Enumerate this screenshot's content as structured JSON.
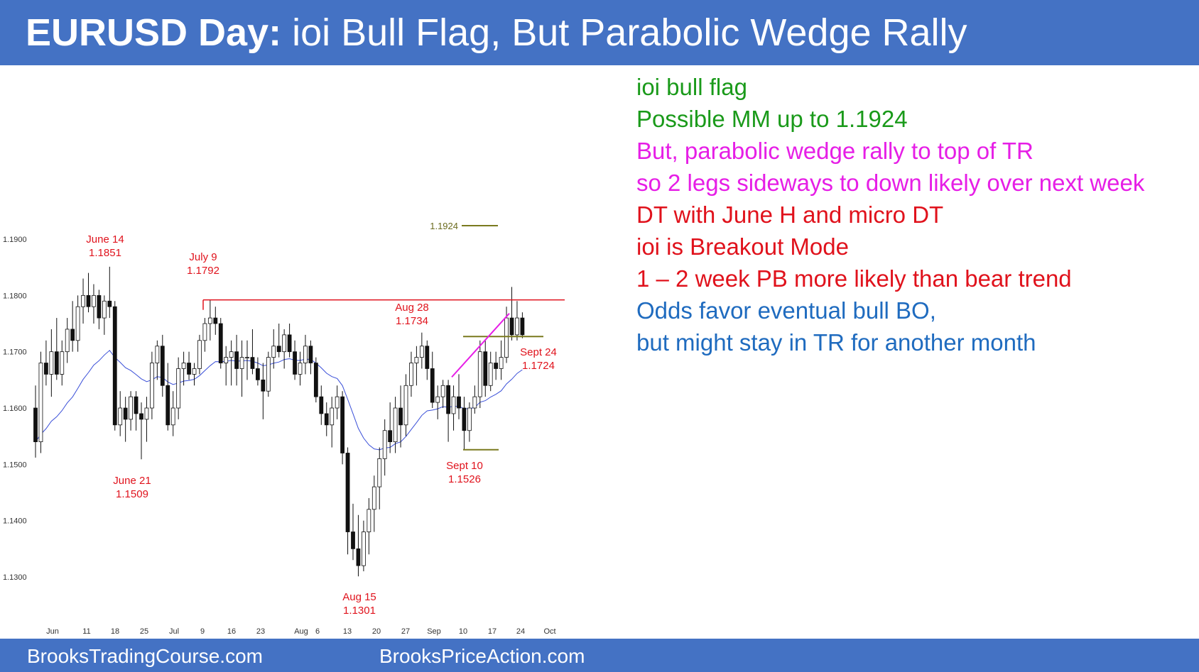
{
  "header": {
    "title_bold": "EURUSD Day:",
    "title_rest": " ioi Bull Flag, But Parabolic Wedge Rally"
  },
  "footer": {
    "left_link": "BrooksTradingCourse.com",
    "right_link": "BrooksPriceAction.com"
  },
  "notes": [
    {
      "text": "ioi bull flag",
      "color": "#1a9a1a"
    },
    {
      "text": "Possible MM up to 1.1924",
      "color": "#1a9a1a"
    },
    {
      "text": "But, parabolic wedge rally to top of TR",
      "color": "#e61ee6"
    },
    {
      "text": "so 2 legs sideways to down likely over next week",
      "color": "#e61ee6"
    },
    {
      "text": "DT with June H and micro DT",
      "color": "#e0121c"
    },
    {
      "text": "ioi is Breakout Mode",
      "color": "#e0121c"
    },
    {
      "text": "1 – 2 week PB more likely than bear trend",
      "color": "#e0121c"
    },
    {
      "text": "Odds favor eventual bull BO,",
      "color": "#1f6bbf"
    },
    {
      "text": "but might stay in TR for another month",
      "color": "#1f6bbf"
    }
  ],
  "chart_data": {
    "type": "candlestick",
    "y_axis_ticks": [
      "1.1900",
      "1.1800",
      "1.1700",
      "1.1600",
      "1.1500",
      "1.1400",
      "1.1300"
    ],
    "ylim": [
      1.127,
      1.1925
    ],
    "x_axis_ticks": [
      "Jun",
      "11",
      "18",
      "25",
      "Jul",
      "9",
      "16",
      "23",
      "Aug",
      "6",
      "13",
      "20",
      "27",
      "Sep",
      "10",
      "17",
      "24",
      "Oct"
    ],
    "annotations": [
      {
        "date": "June 14",
        "price": "1.1851"
      },
      {
        "date": "July 9",
        "price": "1.1792"
      },
      {
        "date": "Aug 28",
        "price": "1.1734"
      },
      {
        "date": "June 21",
        "price": "1.1509"
      },
      {
        "date": "Aug 15",
        "price": "1.1301"
      },
      {
        "date": "Sept 10",
        "price": "1.1526"
      },
      {
        "date": "Sept 24",
        "price": "1.1724"
      }
    ],
    "measured_move_target": "1.1924",
    "resistance_line": 1.1792,
    "flag_top": 1.1727,
    "flag_bottom": 1.1526,
    "candles": [
      [
        1.16,
        1.164,
        1.1512,
        1.154
      ],
      [
        1.154,
        1.17,
        1.152,
        1.168
      ],
      [
        1.168,
        1.172,
        1.164,
        1.166
      ],
      [
        1.166,
        1.174,
        1.162,
        1.17
      ],
      [
        1.17,
        1.176,
        1.165,
        1.166
      ],
      [
        1.166,
        1.172,
        1.164,
        1.17
      ],
      [
        1.17,
        1.176,
        1.168,
        1.174
      ],
      [
        1.174,
        1.179,
        1.17,
        1.172
      ],
      [
        1.172,
        1.18,
        1.17,
        1.178
      ],
      [
        1.178,
        1.183,
        1.175,
        1.18
      ],
      [
        1.18,
        1.184,
        1.177,
        1.178
      ],
      [
        1.178,
        1.182,
        1.175,
        1.18
      ],
      [
        1.18,
        1.181,
        1.174,
        1.176
      ],
      [
        1.176,
        1.18,
        1.173,
        1.179
      ],
      [
        1.179,
        1.1851,
        1.176,
        1.178
      ],
      [
        1.178,
        1.179,
        1.156,
        1.157
      ],
      [
        1.157,
        1.163,
        1.155,
        1.16
      ],
      [
        1.16,
        1.162,
        1.154,
        1.158
      ],
      [
        1.158,
        1.163,
        1.156,
        1.162
      ],
      [
        1.162,
        1.163,
        1.156,
        1.159
      ],
      [
        1.159,
        1.161,
        1.1509,
        1.158
      ],
      [
        1.158,
        1.162,
        1.154,
        1.16
      ],
      [
        1.16,
        1.17,
        1.158,
        1.168
      ],
      [
        1.168,
        1.172,
        1.165,
        1.171
      ],
      [
        1.171,
        1.173,
        1.162,
        1.164
      ],
      [
        1.164,
        1.168,
        1.156,
        1.157
      ],
      [
        1.157,
        1.163,
        1.155,
        1.16
      ],
      [
        1.16,
        1.169,
        1.158,
        1.167
      ],
      [
        1.167,
        1.17,
        1.164,
        1.168
      ],
      [
        1.168,
        1.17,
        1.165,
        1.166
      ],
      [
        1.166,
        1.168,
        1.164,
        1.167
      ],
      [
        1.167,
        1.173,
        1.166,
        1.172
      ],
      [
        1.172,
        1.176,
        1.17,
        1.175
      ],
      [
        1.175,
        1.1792,
        1.172,
        1.176
      ],
      [
        1.176,
        1.178,
        1.173,
        1.175
      ],
      [
        1.175,
        1.176,
        1.167,
        1.168
      ],
      [
        1.168,
        1.171,
        1.164,
        1.169
      ],
      [
        1.169,
        1.172,
        1.164,
        1.17
      ],
      [
        1.17,
        1.173,
        1.164,
        1.167
      ],
      [
        1.167,
        1.172,
        1.162,
        1.169
      ],
      [
        1.169,
        1.172,
        1.165,
        1.169
      ],
      [
        1.169,
        1.174,
        1.166,
        1.167
      ],
      [
        1.167,
        1.169,
        1.164,
        1.165
      ],
      [
        1.165,
        1.168,
        1.158,
        1.163
      ],
      [
        1.163,
        1.17,
        1.162,
        1.169
      ],
      [
        1.169,
        1.174,
        1.167,
        1.171
      ],
      [
        1.171,
        1.175,
        1.169,
        1.17
      ],
      [
        1.17,
        1.174,
        1.167,
        1.173
      ],
      [
        1.173,
        1.175,
        1.169,
        1.17
      ],
      [
        1.17,
        1.172,
        1.165,
        1.166
      ],
      [
        1.166,
        1.17,
        1.164,
        1.168
      ],
      [
        1.168,
        1.173,
        1.166,
        1.171
      ],
      [
        1.171,
        1.172,
        1.166,
        1.168
      ],
      [
        1.168,
        1.169,
        1.161,
        1.162
      ],
      [
        1.162,
        1.164,
        1.157,
        1.159
      ],
      [
        1.159,
        1.161,
        1.155,
        1.157
      ],
      [
        1.157,
        1.162,
        1.153,
        1.16
      ],
      [
        1.16,
        1.164,
        1.158,
        1.162
      ],
      [
        1.162,
        1.163,
        1.15,
        1.152
      ],
      [
        1.152,
        1.153,
        1.134,
        1.138
      ],
      [
        1.138,
        1.143,
        1.133,
        1.135
      ],
      [
        1.135,
        1.141,
        1.1301,
        1.132
      ],
      [
        1.132,
        1.14,
        1.131,
        1.138
      ],
      [
        1.138,
        1.144,
        1.134,
        1.142
      ],
      [
        1.142,
        1.148,
        1.138,
        1.146
      ],
      [
        1.146,
        1.153,
        1.142,
        1.151
      ],
      [
        1.151,
        1.158,
        1.148,
        1.156
      ],
      [
        1.156,
        1.161,
        1.152,
        1.154
      ],
      [
        1.154,
        1.162,
        1.152,
        1.16
      ],
      [
        1.16,
        1.164,
        1.153,
        1.157
      ],
      [
        1.157,
        1.166,
        1.155,
        1.164
      ],
      [
        1.164,
        1.17,
        1.162,
        1.168
      ],
      [
        1.168,
        1.171,
        1.164,
        1.169
      ],
      [
        1.169,
        1.1734,
        1.167,
        1.171
      ],
      [
        1.171,
        1.172,
        1.165,
        1.167
      ],
      [
        1.167,
        1.17,
        1.16,
        1.161
      ],
      [
        1.161,
        1.164,
        1.158,
        1.162
      ],
      [
        1.162,
        1.165,
        1.16,
        1.164
      ],
      [
        1.164,
        1.165,
        1.154,
        1.159
      ],
      [
        1.159,
        1.164,
        1.156,
        1.162
      ],
      [
        1.162,
        1.166,
        1.158,
        1.16
      ],
      [
        1.16,
        1.162,
        1.1526,
        1.156
      ],
      [
        1.156,
        1.161,
        1.154,
        1.16
      ],
      [
        1.16,
        1.164,
        1.159,
        1.162
      ],
      [
        1.162,
        1.172,
        1.16,
        1.17
      ],
      [
        1.17,
        1.172,
        1.162,
        1.164
      ],
      [
        1.164,
        1.17,
        1.163,
        1.168
      ],
      [
        1.168,
        1.17,
        1.165,
        1.167
      ],
      [
        1.167,
        1.172,
        1.165,
        1.169
      ],
      [
        1.169,
        1.178,
        1.168,
        1.176
      ],
      [
        1.176,
        1.1815,
        1.172,
        1.173
      ],
      [
        1.173,
        1.179,
        1.172,
        1.176
      ],
      [
        1.176,
        1.177,
        1.1724,
        1.173
      ]
    ]
  }
}
